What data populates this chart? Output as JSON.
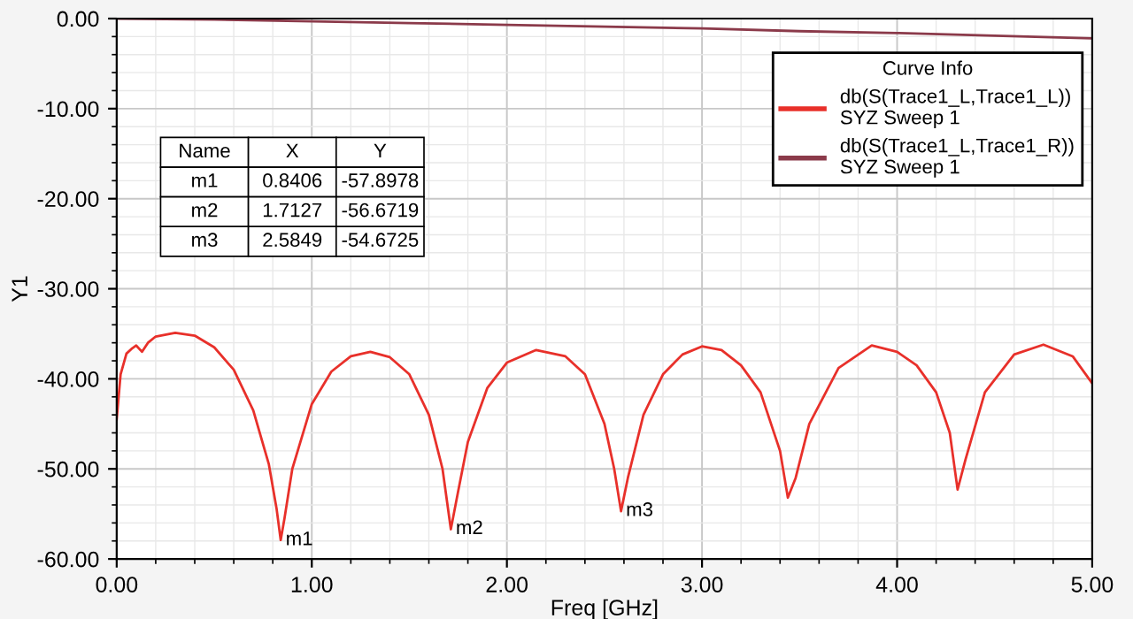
{
  "chart_data": {
    "type": "line",
    "xlabel": "Freq [GHz]",
    "ylabel": "Y1",
    "legend_title": "Curve Info",
    "xlim": [
      0,
      5
    ],
    "ylim": [
      -60,
      0
    ],
    "xticks": [
      {
        "value": 0,
        "label": "0.00"
      },
      {
        "value": 1,
        "label": "1.00"
      },
      {
        "value": 2,
        "label": "2.00"
      },
      {
        "value": 3,
        "label": "3.00"
      },
      {
        "value": 4,
        "label": "4.00"
      },
      {
        "value": 5,
        "label": "5.00"
      }
    ],
    "yticks": [
      {
        "value": 0,
        "label": "0.00"
      },
      {
        "value": -10,
        "label": "-10.00"
      },
      {
        "value": -20,
        "label": "-20.00"
      },
      {
        "value": -30,
        "label": "-30.00"
      },
      {
        "value": -40,
        "label": "-40.00"
      },
      {
        "value": -50,
        "label": "-50.00"
      },
      {
        "value": -60,
        "label": "-60.00"
      }
    ],
    "grid": true,
    "legend": "top right",
    "line_style": "solid",
    "marker": "none",
    "series": [
      {
        "name": "db(S(Trace1_L,Trace1_L))\nSYZ Sweep 1",
        "color": "#e8302a",
        "x": [
          0,
          0.02,
          0.05,
          0.08,
          0.1,
          0.13,
          0.16,
          0.2,
          0.3,
          0.4,
          0.5,
          0.6,
          0.7,
          0.78,
          0.82,
          0.8406,
          0.86,
          0.9,
          1.0,
          1.1,
          1.2,
          1.3,
          1.4,
          1.5,
          1.6,
          1.67,
          1.7127,
          1.75,
          1.8,
          1.9,
          2.0,
          2.15,
          2.3,
          2.4,
          2.5,
          2.55,
          2.5849,
          2.62,
          2.7,
          2.8,
          2.9,
          3.0,
          3.1,
          3.2,
          3.3,
          3.4,
          3.44,
          3.48,
          3.55,
          3.7,
          3.87,
          4.0,
          4.1,
          4.2,
          4.27,
          4.31,
          4.35,
          4.45,
          4.6,
          4.75,
          4.9,
          5.0
        ],
        "values": [
          -44.5,
          -39.5,
          -37.2,
          -36.6,
          -36.3,
          -37.0,
          -36.0,
          -35.3,
          -34.9,
          -35.2,
          -36.5,
          -39,
          -43.5,
          -49.5,
          -54.5,
          -57.9,
          -55.5,
          -50,
          -42.8,
          -39.2,
          -37.5,
          -37.0,
          -37.6,
          -39.5,
          -44,
          -50,
          -56.7,
          -52.5,
          -47,
          -41,
          -38.2,
          -36.8,
          -37.5,
          -39.5,
          -45,
          -50,
          -54.7,
          -51,
          -44,
          -39.5,
          -37.3,
          -36.4,
          -36.8,
          -38.5,
          -41.5,
          -48,
          -53.2,
          -51,
          -45,
          -38.8,
          -36.3,
          -37,
          -38.5,
          -41.5,
          -46,
          -52.3,
          -49,
          -41.5,
          -37.3,
          -36.2,
          -37.5,
          -40.5
        ]
      },
      {
        "name": "db(S(Trace1_L,Trace1_R))\nSYZ Sweep 1",
        "color": "#8b3a4a",
        "x": [
          0,
          0.5,
          1,
          1.5,
          2,
          2.5,
          3,
          3.5,
          4,
          4.5,
          5
        ],
        "values": [
          0,
          -0.1,
          -0.3,
          -0.5,
          -0.7,
          -0.9,
          -1.1,
          -1.4,
          -1.6,
          -1.9,
          -2.2
        ]
      }
    ],
    "annotations": [
      {
        "text": "m1",
        "x": 0.8406,
        "y": -57.8978
      },
      {
        "text": "m2",
        "x": 1.7127,
        "y": -56.6719
      },
      {
        "text": "m3",
        "x": 2.5849,
        "y": -54.6725
      },
      "Name",
      "X",
      "Y",
      "m1",
      "0.8406",
      "-57.8978",
      "m2",
      "1.7127",
      "-56.6719",
      "m3",
      "2.5849",
      "-54.6725"
    ]
  }
}
